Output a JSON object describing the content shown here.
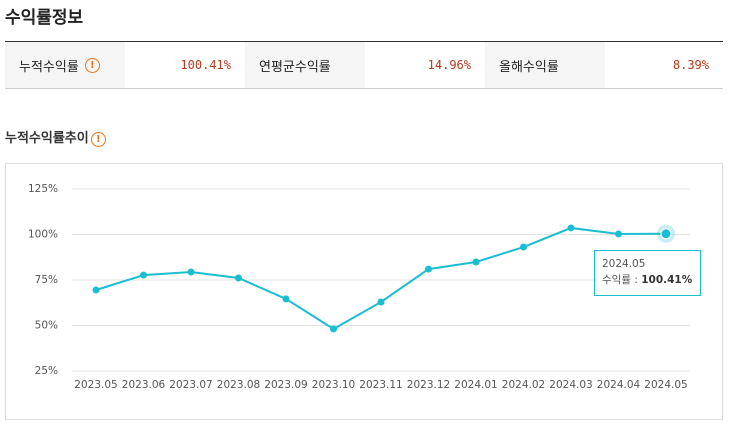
{
  "header": {
    "title": "수익률정보"
  },
  "summary": [
    {
      "label": "누적수익률",
      "value": "100.41%"
    },
    {
      "label": "연평균수익률",
      "value": "14.96%"
    },
    {
      "label": "올해수익률",
      "value": "8.39%"
    }
  ],
  "section_title": "누적수익률추이",
  "chart_data": {
    "type": "line",
    "categories": [
      "2023.05",
      "2023.06",
      "2023.07",
      "2023.08",
      "2023.09",
      "2023.10",
      "2023.11",
      "2023.12",
      "2024.01",
      "2024.02",
      "2024.03",
      "2024.04",
      "2024.05"
    ],
    "values": [
      69.5,
      77.7,
      79.4,
      76.1,
      64.6,
      48.1,
      62.9,
      81.0,
      84.9,
      93.1,
      103.6,
      100.3,
      100.41
    ],
    "color": "#1bbdd0",
    "ylim": [
      25,
      125
    ],
    "yticks": [
      {
        "value": 25,
        "label": "25%"
      },
      {
        "value": 50,
        "label": "50%"
      },
      {
        "value": 75,
        "label": "75%"
      },
      {
        "value": 100,
        "label": "100%"
      },
      {
        "value": 125,
        "label": "125%"
      }
    ],
    "grid": true,
    "tooltip": {
      "title": "2024.05",
      "label": "수익률 : ",
      "value": "100.41%"
    }
  }
}
